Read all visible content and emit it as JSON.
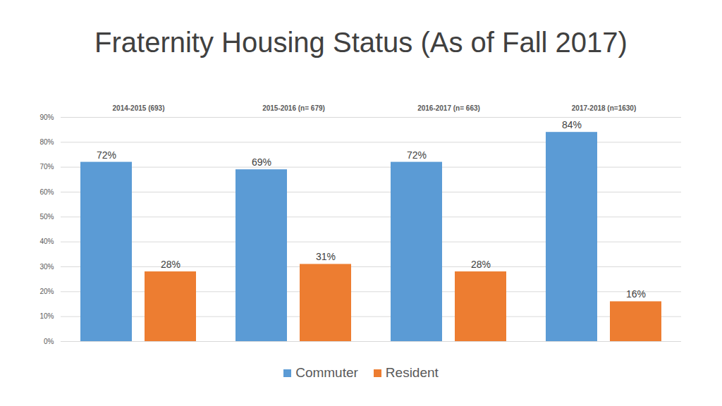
{
  "chart_data": {
    "type": "bar",
    "title": "Fraternity Housing Status (As of Fall 2017)",
    "categories": [
      "2014-2015 (693)",
      "2015-2016 (n= 679)",
      "2016-2017 (n= 663)",
      "2017-2018 (n=1630)"
    ],
    "series": [
      {
        "name": "Commuter",
        "color": "#5b9bd5",
        "values": [
          72,
          69,
          72,
          84
        ],
        "value_labels": [
          "72%",
          "69%",
          "72%",
          "84%"
        ]
      },
      {
        "name": "Resident",
        "color": "#ed7d31",
        "values": [
          28,
          31,
          28,
          16
        ],
        "value_labels": [
          "28%",
          "31%",
          "28%",
          "16%"
        ]
      }
    ],
    "ylim": [
      0,
      90
    ],
    "yticks": [
      {
        "value": 0,
        "label": "0%"
      },
      {
        "value": 10,
        "label": "10%"
      },
      {
        "value": 20,
        "label": "20%"
      },
      {
        "value": 30,
        "label": "30%"
      },
      {
        "value": 40,
        "label": "40%"
      },
      {
        "value": 50,
        "label": "50%"
      },
      {
        "value": 60,
        "label": "60%"
      },
      {
        "value": 70,
        "label": "70%"
      },
      {
        "value": 80,
        "label": "80%"
      },
      {
        "value": 90,
        "label": "90%"
      }
    ],
    "grid": true,
    "data_labels": true,
    "legend": "bottom"
  }
}
